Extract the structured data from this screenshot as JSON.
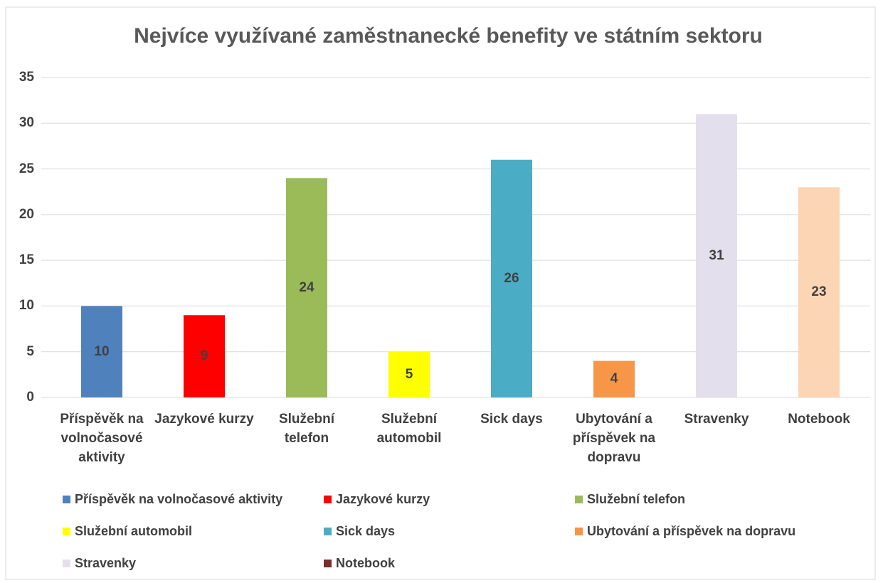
{
  "chart_data": {
    "type": "bar",
    "title": "Nejvíce využívané zaměstnanecké benefity ve státním sektoru",
    "categories": [
      "Příspěvěk na volnočasové aktivity",
      "Jazykové kurzy",
      "Služební telefon",
      "Služební automobil",
      "Sick days",
      "Ubytování a příspěvek na dopravu",
      "Stravenky",
      "Notebook"
    ],
    "values": [
      10,
      9,
      24,
      5,
      26,
      4,
      31,
      23
    ],
    "colors": [
      "#4f81bd",
      "#ff0000",
      "#9bbb59",
      "#ffff00",
      "#4bacc6",
      "#f79646",
      "#e4dfec",
      "#fcd5b4"
    ],
    "legend_colors": [
      "#4f81bd",
      "#ff0000",
      "#9bbb59",
      "#ffff00",
      "#4bacc6",
      "#f79646",
      "#e4dfec",
      "#7b2c2c"
    ],
    "ylim": [
      0,
      35
    ],
    "yticks": [
      0,
      5,
      10,
      15,
      20,
      25,
      30,
      35
    ],
    "grid": true
  }
}
